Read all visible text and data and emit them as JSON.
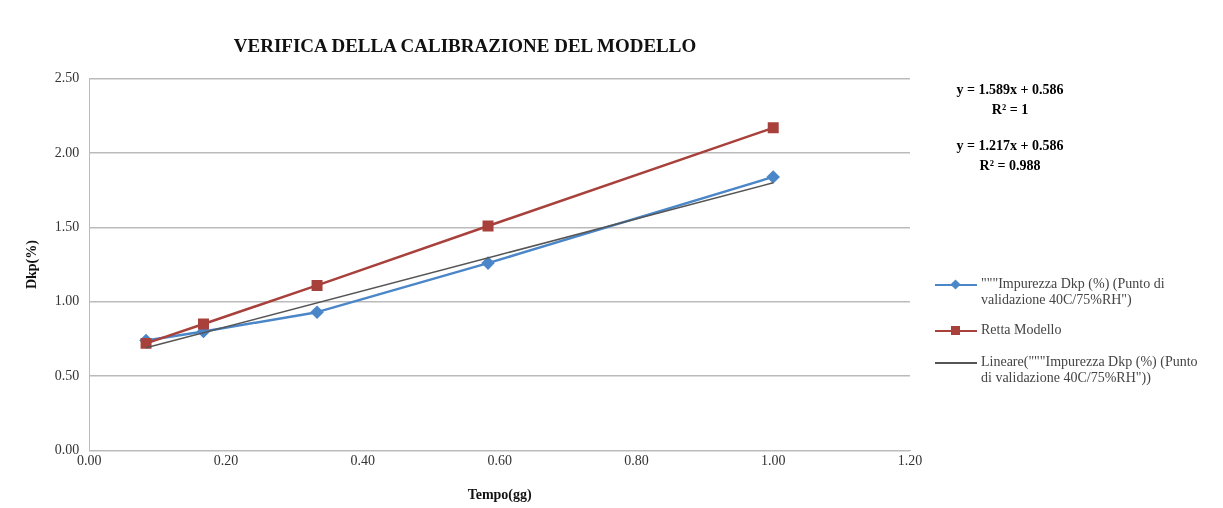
{
  "chart_data": {
    "type": "line",
    "title": "VERIFICA DELLA CALIBRAZIONE DEL MODELLO",
    "xlabel": "Tempo(gg)",
    "ylabel": "Dkp(%)",
    "xlim": [
      0,
      1.2
    ],
    "xticks": [
      {
        "value": 0,
        "label": "0.00"
      },
      {
        "value": 0.2,
        "label": "0.20"
      },
      {
        "value": 0.4,
        "label": "0.40"
      },
      {
        "value": 0.6,
        "label": "0.60"
      },
      {
        "value": 0.8,
        "label": "0.80"
      },
      {
        "value": 1,
        "label": "1.00"
      },
      {
        "value": 1.2,
        "label": "1.20"
      }
    ],
    "ylim": [
      0,
      2.5
    ],
    "yticks": [
      {
        "value": 0,
        "label": "0.00"
      },
      {
        "value": 0.5,
        "label": "0.50"
      },
      {
        "value": 1,
        "label": "1.00"
      },
      {
        "value": 1.5,
        "label": "1.50"
      },
      {
        "value": 2,
        "label": "2.00"
      },
      {
        "value": 2.5,
        "label": "2.50"
      }
    ],
    "grid": "y",
    "legend": "right",
    "series": [
      {
        "name": "\"\"\"Impurezza Dkp (%) (Punto di validazione 40C/75%RH\")",
        "color": "#4a86c8",
        "marker": "diamond",
        "x": [
          0.083,
          0.167,
          0.333,
          0.583,
          1.0
        ],
        "values": [
          0.74,
          0.8,
          0.93,
          1.26,
          1.84
        ]
      },
      {
        "name": "Retta Modello",
        "color": "#a8403b",
        "marker": "square",
        "x": [
          0.083,
          0.167,
          0.333,
          0.583,
          1.0
        ],
        "values": [
          0.72,
          0.85,
          1.11,
          1.51,
          2.17
        ]
      },
      {
        "name": "Lineare(\"\"\"Impurezza Dkp (%) (Punto di validazione 40C/75%RH\"))",
        "color": "#555555",
        "marker": "none",
        "x": [
          0.083,
          1.0
        ],
        "values": [
          0.69,
          1.8
        ]
      }
    ],
    "annotations": [
      "y = 1.589x + 0.586\nR² = 1",
      "y = 1.217x + 0.586\nR² = 0.988"
    ]
  }
}
